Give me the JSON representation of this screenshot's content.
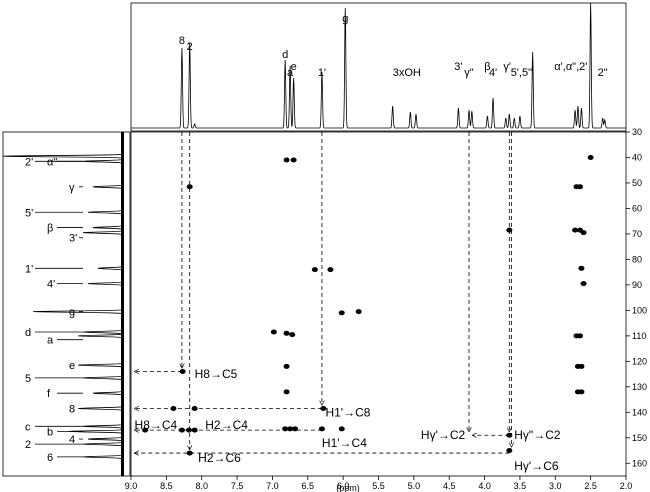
{
  "chart_data": {
    "type": "scatter",
    "xlabel": "(ppm)",
    "x_range": [
      9.0,
      2.0
    ],
    "y_range": [
      30,
      165
    ],
    "x_ticks": [
      "9.0",
      "8.5",
      "8.0",
      "7.5",
      "7.0",
      "6.5",
      "6.0",
      "5.5",
      "5.0",
      "4.5",
      "4.0",
      "3.5",
      "3.0",
      "2.5",
      "2.0"
    ],
    "y_ticks": [
      "30",
      "40",
      "50",
      "60",
      "70",
      "80",
      "90",
      "100",
      "110",
      "120",
      "130",
      "140",
      "150",
      "160"
    ],
    "top_labels": [
      {
        "text": "8",
        "x": 8.28
      },
      {
        "text": "2",
        "x": 8.17
      },
      {
        "text": "d",
        "x": 6.82
      },
      {
        "text": "a",
        "x": 6.75
      },
      {
        "text": "e",
        "x": 6.7
      },
      {
        "text": "1'",
        "x": 6.3
      },
      {
        "text": "g",
        "x": 5.97
      },
      {
        "text": "3xOH",
        "x": 5.1
      },
      {
        "text": "3'",
        "x": 4.37
      },
      {
        "text": "γ\"",
        "x": 4.22
      },
      {
        "text": "β",
        "x": 3.96
      },
      {
        "text": "4'",
        "x": 3.88
      },
      {
        "text": "γ'",
        "x": 3.68
      },
      {
        "text": "5',5\"",
        "x": 3.48
      },
      {
        "text": "α',α\",2'",
        "x": 2.78
      },
      {
        "text": "2\"",
        "x": 2.33
      }
    ],
    "left_labels": [
      {
        "text": "2'",
        "y": 41.5
      },
      {
        "text": "α\"",
        "y": 41.5
      },
      {
        "text": "γ",
        "y": 51.5
      },
      {
        "text": "5'",
        "y": 61.5
      },
      {
        "text": "β",
        "y": 67.5
      },
      {
        "text": "3'",
        "y": 71.5
      },
      {
        "text": "1'",
        "y": 83.5
      },
      {
        "text": "4'",
        "y": 89.5
      },
      {
        "text": "g",
        "y": 100.5
      },
      {
        "text": "d",
        "y": 108.5
      },
      {
        "text": "a",
        "y": 111.5
      },
      {
        "text": "e",
        "y": 121.5
      },
      {
        "text": "5",
        "y": 126.5
      },
      {
        "text": "f",
        "y": 132.5
      },
      {
        "text": "8",
        "y": 138.5
      },
      {
        "text": "c",
        "y": 145.5
      },
      {
        "text": "b",
        "y": 147.5
      },
      {
        "text": "4",
        "y": 150.5
      },
      {
        "text": "2",
        "y": 152.5
      },
      {
        "text": "6",
        "y": 157.5
      }
    ],
    "cross_peaks": [
      {
        "x": 6.8,
        "y": 41
      },
      {
        "x": 6.7,
        "y": 41
      },
      {
        "x": 2.5,
        "y": 40
      },
      {
        "x": 8.17,
        "y": 51.5
      },
      {
        "x": 2.65,
        "y": 51.5
      },
      {
        "x": 2.7,
        "y": 51.5
      },
      {
        "x": 2.65,
        "y": 68.5
      },
      {
        "x": 2.72,
        "y": 68.5
      },
      {
        "x": 2.6,
        "y": 69.5
      },
      {
        "x": 3.65,
        "y": 68.5
      },
      {
        "x": 2.63,
        "y": 83.5
      },
      {
        "x": 2.6,
        "y": 89.5
      },
      {
        "x": 6.4,
        "y": 84
      },
      {
        "x": 6.18,
        "y": 84
      },
      {
        "x": 6.02,
        "y": 101
      },
      {
        "x": 5.78,
        "y": 100.5
      },
      {
        "x": 6.98,
        "y": 108.5
      },
      {
        "x": 6.72,
        "y": 109.5
      },
      {
        "x": 6.8,
        "y": 109
      },
      {
        "x": 2.7,
        "y": 110
      },
      {
        "x": 2.65,
        "y": 110
      },
      {
        "x": 8.27,
        "y": 124
      },
      {
        "x": 6.8,
        "y": 122
      },
      {
        "x": 2.68,
        "y": 122
      },
      {
        "x": 2.63,
        "y": 122
      },
      {
        "x": 6.8,
        "y": 132
      },
      {
        "x": 2.68,
        "y": 132
      },
      {
        "x": 2.63,
        "y": 132
      },
      {
        "x": 8.4,
        "y": 138.5
      },
      {
        "x": 8.1,
        "y": 138.5
      },
      {
        "x": 6.28,
        "y": 138.5
      },
      {
        "x": 8.28,
        "y": 147
      },
      {
        "x": 8.18,
        "y": 147
      },
      {
        "x": 8.8,
        "y": 147
      },
      {
        "x": 8.1,
        "y": 147
      },
      {
        "x": 6.82,
        "y": 146.5
      },
      {
        "x": 6.75,
        "y": 146.5
      },
      {
        "x": 6.68,
        "y": 146.5
      },
      {
        "x": 6.3,
        "y": 146.5
      },
      {
        "x": 6.02,
        "y": 146.5
      },
      {
        "x": 3.65,
        "y": 149
      },
      {
        "x": 3.65,
        "y": 155
      },
      {
        "x": 8.17,
        "y": 156
      }
    ],
    "annotations": [
      {
        "text": "H8→C5"
      },
      {
        "text": "H1'→C8"
      },
      {
        "text": "H8→C4"
      },
      {
        "text": "H2→C4"
      },
      {
        "text": "H1'→C4"
      },
      {
        "text": "Hγ'→C2"
      },
      {
        "text": "Hγ\"→C2"
      },
      {
        "text": "H2→C6"
      },
      {
        "text": "Hγ'→C6"
      }
    ]
  }
}
